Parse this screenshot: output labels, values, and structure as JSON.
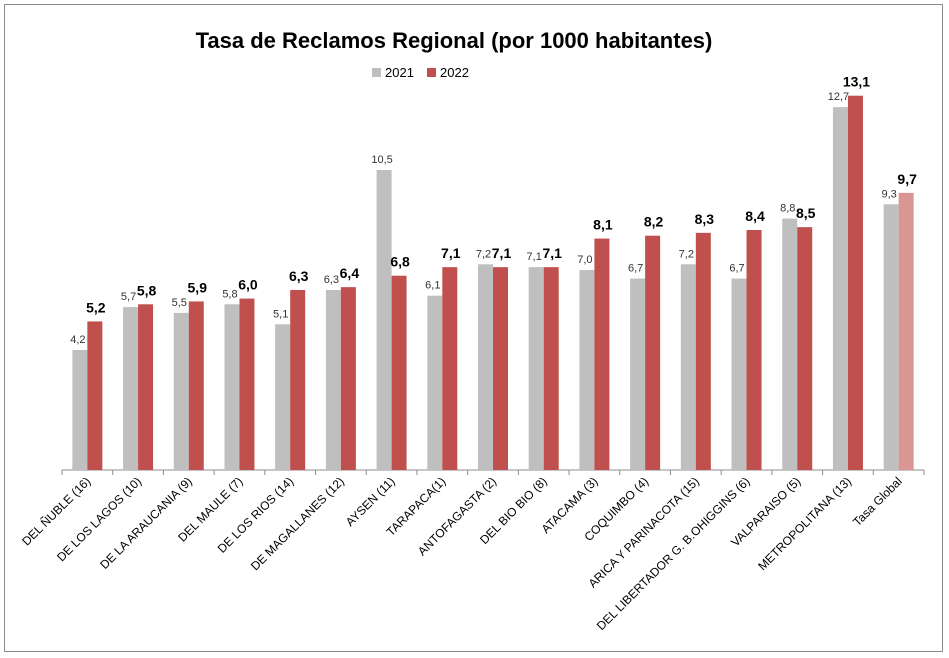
{
  "chart_data": {
    "type": "bar",
    "title": "Tasa de Reclamos Regional (por 1000 habitantes)",
    "xlabel": "",
    "ylabel": "",
    "ylim": [
      0,
      14
    ],
    "legend_position": "top-center",
    "grid": false,
    "categories": [
      "DEL ÑUBLE (16)",
      "DE LOS LAGOS (10)",
      "DE LA ARAUCANIA (9)",
      "DEL MAULE (7)",
      "DE LOS RIOS (14)",
      "DE MAGALLANES  (12)",
      "AYSEN  (11)",
      "TARAPACA(1)",
      "ANTOFAGASTA (2)",
      "DEL BIO BIO (8)",
      "ATACAMA (3)",
      "COQUIMBO (4)",
      "ARICA Y PARINACOTA (15)",
      "DEL LIBERTADOR G. B.OHIGGINS (6)",
      "VALPARAISO (5)",
      "METROPOLITANA  (13)",
      "Tasa Global"
    ],
    "series": [
      {
        "name": "2021",
        "color": "#bfbfbf",
        "values": [
          4.2,
          5.7,
          5.5,
          5.8,
          5.1,
          6.3,
          10.5,
          6.1,
          7.2,
          7.1,
          7.0,
          6.7,
          7.2,
          6.7,
          8.8,
          12.7,
          9.3
        ],
        "labels": [
          "4,2",
          "5,7",
          "5,5",
          "5,8",
          "5,1",
          "6,3",
          "10,5",
          "6,1",
          "7,2",
          "7,1",
          "7,0",
          "6,7",
          "7,2",
          "6,7",
          "8,8",
          "12,7",
          "9,3"
        ]
      },
      {
        "name": "2022",
        "color": "#c0504d",
        "highlight_color": "#d99694",
        "values": [
          5.2,
          5.8,
          5.9,
          6.0,
          6.3,
          6.4,
          6.8,
          7.1,
          7.1,
          7.1,
          8.1,
          8.2,
          8.3,
          8.4,
          8.5,
          13.1,
          9.7
        ],
        "labels": [
          "5,2",
          "5,8",
          "5,9",
          "6,0",
          "6,3",
          "6,4",
          "6,8",
          "7,1",
          "7,1",
          "7,1",
          "8,1",
          "8,2",
          "8,3",
          "8,4",
          "8,5",
          "13,1",
          "9,7"
        ]
      }
    ]
  }
}
